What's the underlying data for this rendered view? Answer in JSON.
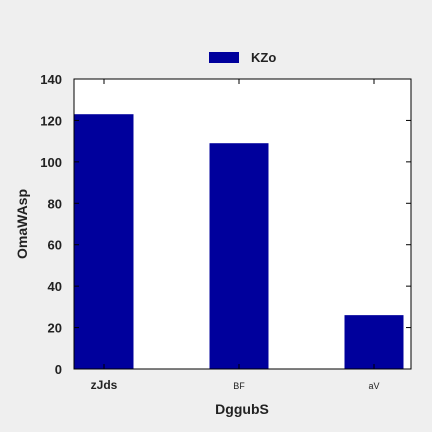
{
  "chart_data": {
    "type": "bar",
    "categories": [
      "zJds",
      "BF",
      "aV"
    ],
    "series": [
      {
        "name": "KZo",
        "values": [
          123,
          109,
          26
        ],
        "color": "#00009c"
      }
    ],
    "xlabel": "DggubS",
    "ylabel": "OmaWAsp",
    "ylim": [
      0,
      140
    ],
    "yticks": [
      0,
      20,
      40,
      60,
      80,
      100,
      120,
      140
    ],
    "grid": false,
    "legend": {
      "position": "top-center"
    },
    "plot_background": "#ffffff",
    "page_background": "#efefef"
  }
}
